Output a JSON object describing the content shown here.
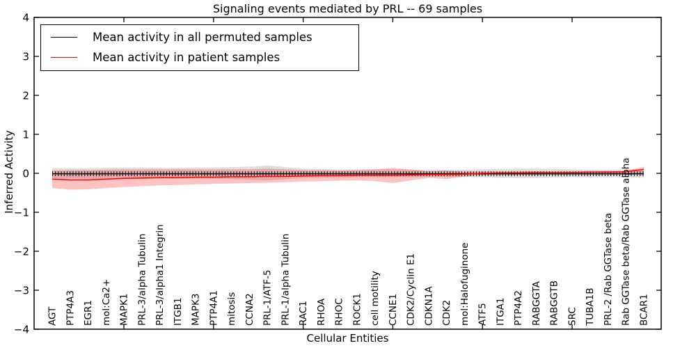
{
  "figure": {
    "title": "Signaling events mediated by PRL -- 69 samples",
    "xlabel": "Cellular Entities",
    "ylabel": "Inferred Activity"
  },
  "legend": {
    "items": [
      {
        "label": "Mean activity in all permuted samples",
        "color": "#000000"
      },
      {
        "label": "Mean activity in patient samples",
        "color": "#ff0000"
      }
    ]
  },
  "chart_data": {
    "type": "line",
    "title": "Signaling events mediated by PRL -- 69 samples",
    "xlabel": "Cellular Entities",
    "ylabel": "Inferred Activity",
    "ylim": [
      -4,
      4
    ],
    "yticks": [
      4,
      3,
      2,
      1,
      0,
      -1,
      -2,
      -3,
      -4
    ],
    "x_major_tick_indices": [
      4,
      9,
      14,
      19,
      24,
      29
    ],
    "grid": false,
    "legend_position": "upper left",
    "categories": [
      "AGT",
      "PTP4A3",
      "EGR1",
      "mol:Ca2+",
      "MAPK1",
      "PRL-3/alpha Tubulin",
      "PRL-3/alpha1 Integrin",
      "ITGB1",
      "MAPK3",
      "PTP4A1",
      "mitosis",
      "CCNA2",
      "PRL-1/ATF-5",
      "PRL-1/alpha Tubulin",
      "RAC1",
      "RHOA",
      "RHOC",
      "ROCK1",
      "cell motility",
      "CCNE1",
      "CDK2/Cyclin E1",
      "CDKN1A",
      "CDK2",
      "mol:Halofuginone",
      "ATF5",
      "ITGA1",
      "PTP4A2",
      "RABGGTA",
      "RABGGTB",
      "SRC",
      "TUBA1B",
      "PRL-2 /Rab GGTase beta",
      "Rab GGTase beta/Rab GGTase alpha",
      "BCAR1"
    ],
    "series": [
      {
        "name": "Mean activity in all permuted samples",
        "color": "#000000",
        "tick_markers": true,
        "values": [
          -0.01,
          -0.01,
          -0.01,
          -0.01,
          -0.01,
          -0.01,
          -0.01,
          -0.01,
          -0.01,
          -0.01,
          -0.01,
          -0.01,
          -0.01,
          -0.01,
          -0.01,
          -0.01,
          -0.01,
          -0.01,
          -0.01,
          -0.01,
          -0.01,
          -0.01,
          -0.01,
          -0.01,
          -0.01,
          -0.01,
          -0.01,
          -0.01,
          -0.01,
          -0.01,
          -0.01,
          -0.01,
          -0.01,
          -0.01
        ]
      },
      {
        "name": "Mean activity in patient samples",
        "color": "#ff0000",
        "tick_markers": false,
        "values": [
          -0.15,
          -0.17,
          -0.17,
          -0.15,
          -0.13,
          -0.12,
          -0.11,
          -0.11,
          -0.1,
          -0.1,
          -0.09,
          -0.09,
          -0.08,
          -0.08,
          -0.07,
          -0.06,
          -0.06,
          -0.05,
          -0.05,
          -0.05,
          -0.04,
          -0.03,
          -0.03,
          -0.02,
          0.0,
          0.01,
          0.01,
          0.02,
          0.02,
          0.02,
          0.03,
          0.03,
          0.04,
          0.1
        ]
      }
    ],
    "bands": [
      {
        "name": "permuted-range",
        "color": "rgba(0,0,0,0.13)",
        "upper": [
          0.13,
          0.13,
          0.13,
          0.14,
          0.15,
          0.15,
          0.14,
          0.14,
          0.15,
          0.15,
          0.16,
          0.17,
          0.2,
          0.16,
          0.12,
          0.11,
          0.1,
          0.1,
          0.1,
          0.1,
          0.09,
          0.09,
          0.09,
          0.09,
          0.1,
          0.11,
          0.12,
          0.12,
          0.11,
          0.1,
          0.09,
          0.09,
          0.1,
          0.1
        ],
        "lower": [
          -0.13,
          -0.13,
          -0.14,
          -0.14,
          -0.15,
          -0.15,
          -0.14,
          -0.14,
          -0.14,
          -0.14,
          -0.15,
          -0.16,
          -0.18,
          -0.15,
          -0.12,
          -0.11,
          -0.11,
          -0.1,
          -0.1,
          -0.1,
          -0.1,
          -0.09,
          -0.09,
          -0.09,
          -0.1,
          -0.11,
          -0.12,
          -0.12,
          -0.11,
          -0.1,
          -0.1,
          -0.09,
          -0.1,
          -0.1
        ]
      },
      {
        "name": "patient-range",
        "color": "rgba(255,0,0,0.24)",
        "upper": [
          0.07,
          0.08,
          0.08,
          0.09,
          0.1,
          0.1,
          0.1,
          0.1,
          0.1,
          0.1,
          0.1,
          0.1,
          0.12,
          0.1,
          0.08,
          0.08,
          0.07,
          0.08,
          0.1,
          0.14,
          0.1,
          0.05,
          0.07,
          0.04,
          0.04,
          0.04,
          0.04,
          0.05,
          0.04,
          0.04,
          0.04,
          0.05,
          0.06,
          0.17
        ],
        "lower": [
          -0.38,
          -0.42,
          -0.41,
          -0.38,
          -0.35,
          -0.33,
          -0.31,
          -0.3,
          -0.28,
          -0.27,
          -0.26,
          -0.25,
          -0.24,
          -0.23,
          -0.21,
          -0.2,
          -0.19,
          -0.18,
          -0.2,
          -0.25,
          -0.18,
          -0.12,
          -0.15,
          -0.08,
          -0.05,
          -0.04,
          -0.04,
          -0.05,
          -0.04,
          -0.04,
          -0.04,
          -0.04,
          -0.04,
          -0.02
        ]
      }
    ]
  }
}
